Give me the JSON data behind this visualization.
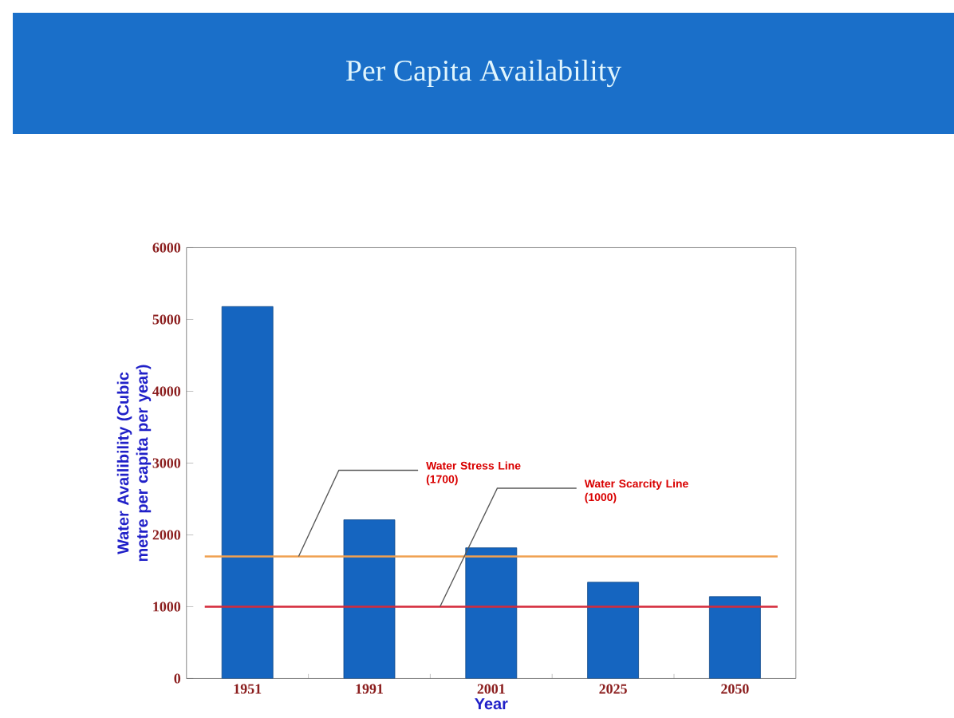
{
  "chart_data": {
    "type": "bar",
    "title": "Per Capita Availability",
    "xlabel": "Year",
    "ylabel": "Water Availibility (Cubic metre per capita per year)",
    "categories": [
      "1951",
      "1991",
      "2001",
      "2025",
      "2050"
    ],
    "values": [
      5180,
      2210,
      1820,
      1340,
      1140
    ],
    "color": "#1565c0",
    "ylim": [
      0,
      6000
    ],
    "yticks": [
      0,
      1000,
      2000,
      3000,
      4000,
      5000,
      6000
    ],
    "grid": false,
    "ref_lines": [
      {
        "axis": "y",
        "value": 1700,
        "label": "Water Stress Line (1700)",
        "color": "#f0a050"
      },
      {
        "axis": "y",
        "value": 1000,
        "label": "Water Scarcity Line (1000)",
        "color": "#d42a3a"
      }
    ]
  }
}
